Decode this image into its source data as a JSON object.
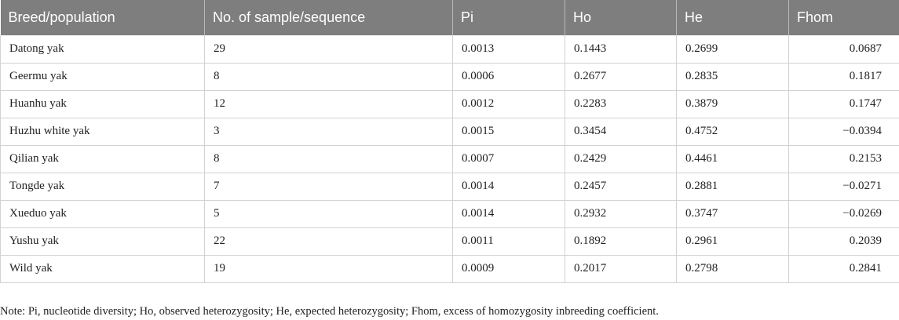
{
  "table": {
    "headers": [
      "Breed/population",
      "No. of sample/sequence",
      "Pi",
      "Ho",
      "He",
      "Fhom"
    ],
    "rows": [
      [
        "Datong yak",
        "29",
        "0.0013",
        "0.1443",
        "0.2699",
        "0.0687"
      ],
      [
        "Geermu yak",
        "8",
        "0.0006",
        "0.2677",
        "0.2835",
        "0.1817"
      ],
      [
        "Huanhu yak",
        "12",
        "0.0012",
        "0.2283",
        "0.3879",
        "0.1747"
      ],
      [
        "Huzhu white yak",
        "3",
        "0.0015",
        "0.3454",
        "0.4752",
        "−0.0394"
      ],
      [
        "Qilian yak",
        "8",
        "0.0007",
        "0.2429",
        "0.4461",
        "0.2153"
      ],
      [
        "Tongde yak",
        "7",
        "0.0014",
        "0.2457",
        "0.2881",
        "−0.0271"
      ],
      [
        "Xueduo yak",
        "5",
        "0.0014",
        "0.2932",
        "0.3747",
        "−0.0269"
      ],
      [
        "Yushu yak",
        "22",
        "0.0011",
        "0.1892",
        "0.2961",
        "0.2039"
      ],
      [
        "Wild yak",
        "19",
        "0.0009",
        "0.2017",
        "0.2798",
        "0.2841"
      ]
    ]
  },
  "note": "Note: Pi, nucleotide diversity; Ho, observed heterozygosity; He, expected heterozygosity; Fhom, excess of homozygosity inbreeding coefficient.",
  "colors": {
    "header_bg": "#7e7e7e",
    "header_text": "#ffffff",
    "grid_line": "#d2d2d2"
  }
}
